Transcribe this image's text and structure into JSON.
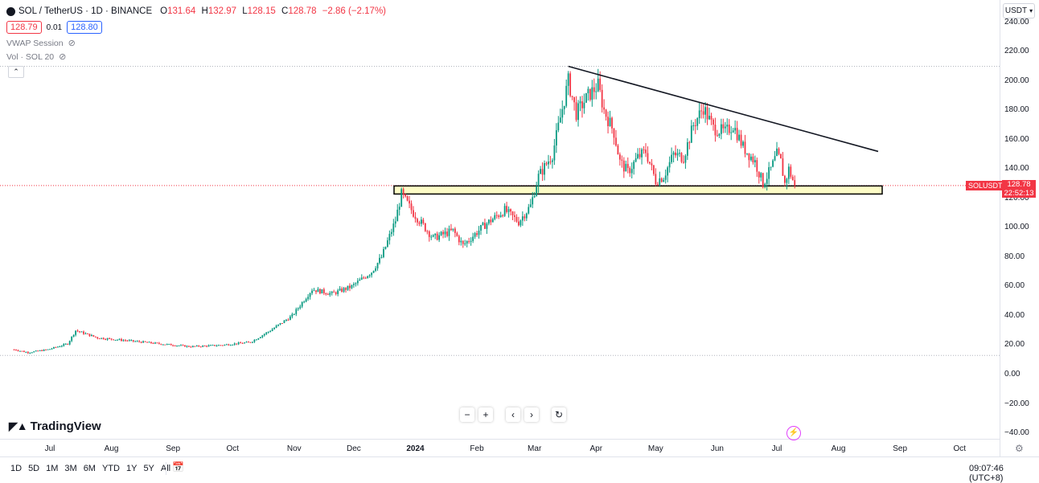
{
  "header": {
    "symbol": "SOL / TetherUS · 1D · BINANCE",
    "open_key": "O",
    "open": "131.64",
    "high_key": "H",
    "high": "132.97",
    "low_key": "L",
    "low": "128.15",
    "close_key": "C",
    "close": "128.78",
    "change": "−2.86 (−2.17%)",
    "sell_price": "128.79",
    "spread": "0.01",
    "buy_price": "128.80",
    "indicators": [
      "VWAP Session",
      "Vol · SOL 20"
    ]
  },
  "currency": "USDT",
  "price_tag": {
    "symbol": "SOLUSDT",
    "price": "128.78",
    "countdown": "22:52:13"
  },
  "nav_buttons": [
    "−",
    "+",
    "‹",
    "›",
    "↻"
  ],
  "logo_text": "TradingView",
  "bottom": {
    "ranges": [
      "1D",
      "5D",
      "1M",
      "3M",
      "6M",
      "YTD",
      "1Y",
      "5Y",
      "All"
    ],
    "clock": "09:07:46 (UTC+8)"
  },
  "colors": {
    "up": "#089981",
    "down": "#f23645",
    "accent": "#2962ff",
    "zone_fill": "#fdfcc6"
  },
  "chart_data": {
    "type": "candlestick",
    "y_ticks": [
      "240.00",
      "220.00",
      "200.00",
      "180.00",
      "160.00",
      "140.00",
      "120.00",
      "100.00",
      "80.00",
      "60.00",
      "40.00",
      "20.00",
      "0.00",
      "−20.00",
      "−40.00"
    ],
    "x_ticks": [
      "Jul",
      "Aug",
      "Sep",
      "Oct",
      "Nov",
      "Dec",
      "2024",
      "Feb",
      "Mar",
      "Apr",
      "May",
      "Jun",
      "Jul",
      "Aug",
      "Sep",
      "Oct"
    ],
    "ylim": [
      -40,
      240
    ],
    "last_price": 128.78,
    "support_zone": [
      123,
      128.5
    ],
    "trendline": [
      {
        "date": "2024-03-18",
        "price": 210
      },
      {
        "date": "2024-08-21",
        "price": 152
      }
    ],
    "swing_high": 210,
    "swing_low": 13,
    "path_points": [
      [
        "2023-06-13",
        17
      ],
      [
        "2023-06-20",
        15
      ],
      [
        "2023-06-30",
        17
      ],
      [
        "2023-07-10",
        21
      ],
      [
        "2023-07-14",
        30
      ],
      [
        "2023-07-25",
        25
      ],
      [
        "2023-08-10",
        23
      ],
      [
        "2023-08-25",
        21
      ],
      [
        "2023-09-10",
        19
      ],
      [
        "2023-09-25",
        20
      ],
      [
        "2023-10-10",
        22
      ],
      [
        "2023-10-20",
        30
      ],
      [
        "2023-10-31",
        40
      ],
      [
        "2023-11-10",
        58
      ],
      [
        "2023-11-20",
        55
      ],
      [
        "2023-11-30",
        60
      ],
      [
        "2023-12-10",
        70
      ],
      [
        "2023-12-15",
        80
      ],
      [
        "2023-12-22",
        105
      ],
      [
        "2023-12-25",
        123
      ],
      [
        "2023-12-31",
        110
      ],
      [
        "2024-01-10",
        93
      ],
      [
        "2024-01-20",
        98
      ],
      [
        "2024-01-25",
        88
      ],
      [
        "2024-02-05",
        102
      ],
      [
        "2024-02-15",
        112
      ],
      [
        "2024-02-22",
        104
      ],
      [
        "2024-02-28",
        115
      ],
      [
        "2024-03-03",
        135
      ],
      [
        "2024-03-10",
        150
      ],
      [
        "2024-03-14",
        175
      ],
      [
        "2024-03-18",
        200
      ],
      [
        "2024-03-22",
        178
      ],
      [
        "2024-03-28",
        190
      ],
      [
        "2024-04-02",
        197
      ],
      [
        "2024-04-05",
        180
      ],
      [
        "2024-04-10",
        165
      ],
      [
        "2024-04-13",
        145
      ],
      [
        "2024-04-17",
        138
      ],
      [
        "2024-04-22",
        148
      ],
      [
        "2024-04-26",
        152
      ],
      [
        "2024-05-01",
        132
      ],
      [
        "2024-05-05",
        135
      ],
      [
        "2024-05-10",
        150
      ],
      [
        "2024-05-15",
        148
      ],
      [
        "2024-05-20",
        170
      ],
      [
        "2024-05-25",
        182
      ],
      [
        "2024-05-30",
        168
      ],
      [
        "2024-06-05",
        165
      ],
      [
        "2024-06-09",
        170
      ],
      [
        "2024-06-14",
        155
      ],
      [
        "2024-06-20",
        145
      ],
      [
        "2024-06-24",
        130
      ],
      [
        "2024-06-28",
        140
      ],
      [
        "2024-07-01",
        150
      ],
      [
        "2024-07-03",
        145
      ],
      [
        "2024-07-05",
        130
      ],
      [
        "2024-07-07",
        140
      ],
      [
        "2024-07-10",
        128.78
      ]
    ]
  }
}
